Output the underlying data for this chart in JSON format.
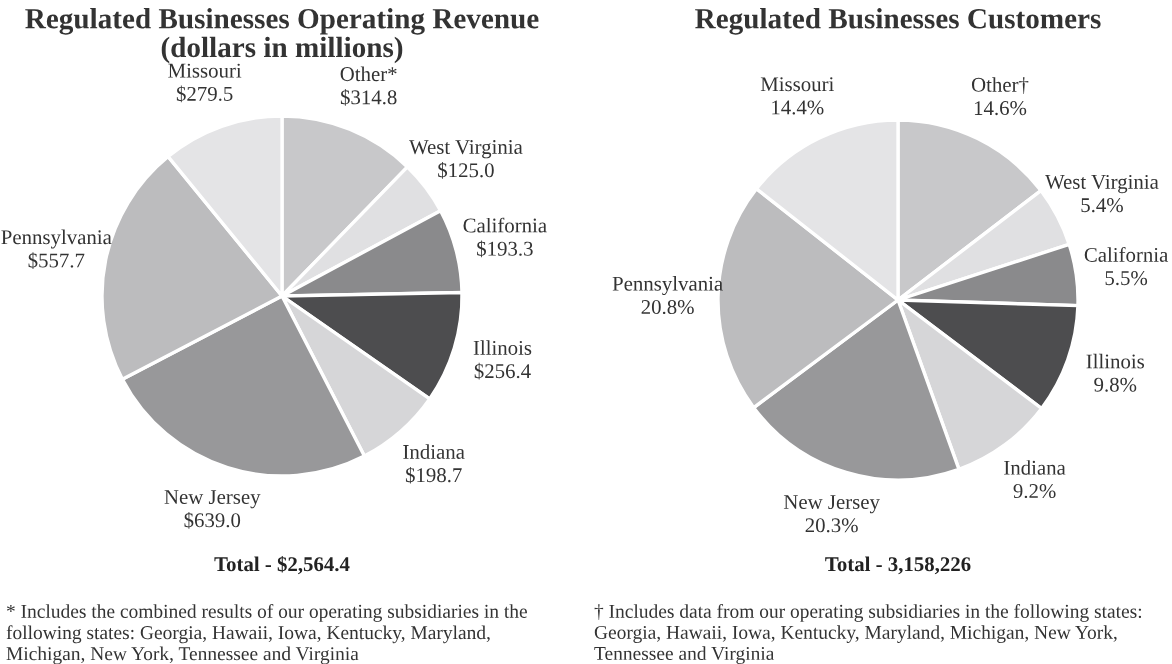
{
  "chart_data": [
    {
      "type": "pie",
      "title": "Regulated Businesses Operating Revenue\n(dollars in millions)",
      "categories": [
        "Other*",
        "West Virginia",
        "California",
        "Illinois",
        "Indiana",
        "New Jersey",
        "Pennsylvania",
        "Missouri"
      ],
      "values": [
        314.8,
        125.0,
        193.3,
        256.4,
        198.7,
        639.0,
        557.7,
        279.5
      ],
      "value_labels": [
        "$314.8",
        "$125.0",
        "$193.3",
        "$256.4",
        "$198.7",
        "$639.0",
        "$557.7",
        "$279.5"
      ],
      "colors": [
        "#c8c8ca",
        "#e0e0e2",
        "#8a8a8c",
        "#4d4d4f",
        "#d6d6d8",
        "#98989a",
        "#bcbcbe",
        "#e4e4e6"
      ],
      "annotations": [
        "Total - $2,564.4",
        "* Includes the combined results of our operating subsidiaries in the\nfollowing states: Georgia, Hawaii, Iowa, Kentucky, Maryland,\nMichigan, New York, Tennessee and Virginia"
      ]
    },
    {
      "type": "pie",
      "title": "Regulated Businesses Customers",
      "categories": [
        "Other†",
        "West Virginia",
        "California",
        "Illinois",
        "Indiana",
        "New Jersey",
        "Pennsylvania",
        "Missouri"
      ],
      "values": [
        14.6,
        5.4,
        5.5,
        9.8,
        9.2,
        20.3,
        20.8,
        14.4
      ],
      "value_labels": [
        "14.6%",
        "5.4%",
        "5.5%",
        "9.8%",
        "9.2%",
        "20.3%",
        "20.8%",
        "14.4%"
      ],
      "colors": [
        "#c8c8ca",
        "#e0e0e2",
        "#8a8a8c",
        "#4d4d4f",
        "#d6d6d8",
        "#98989a",
        "#bcbcbe",
        "#e4e4e6"
      ],
      "annotations": [
        "Total - 3,158,226",
        "† Includes data from our operating subsidiaries in the following states:\nGeorgia, Hawaii, Iowa, Kentucky, Maryland, Michigan, New York,\nTennessee and Virginia"
      ]
    }
  ]
}
